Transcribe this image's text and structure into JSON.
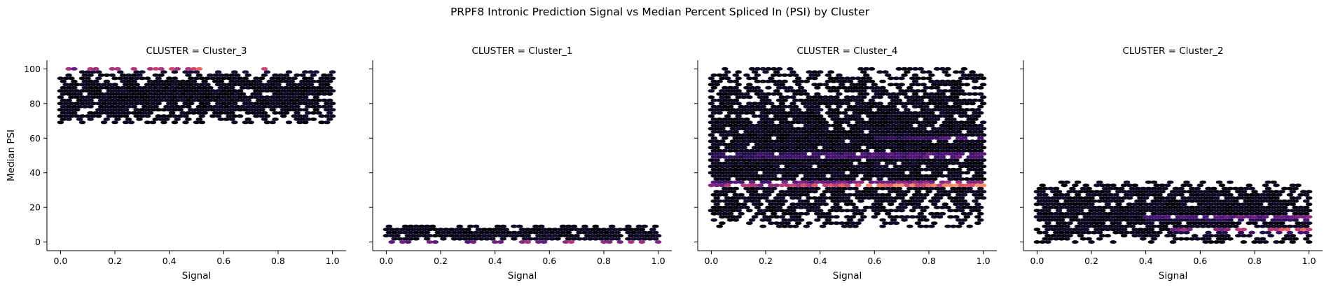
{
  "figure": {
    "title": "PRPF8 Intronic Prediction Signal vs Median Percent Spliced In (PSI) by Cluster"
  },
  "chart_data": {
    "type": "hexbin",
    "colormap": "magma",
    "sharey": true,
    "xlabel": "Signal",
    "ylabel": "Median PSI",
    "xlim": [
      -0.05,
      1.05
    ],
    "ylim": [
      -5,
      105
    ],
    "xticks": [
      "0.0",
      "0.2",
      "0.4",
      "0.6",
      "0.8",
      "1.0"
    ],
    "yticks": [
      "0",
      "20",
      "40",
      "60",
      "80",
      "100"
    ],
    "panels": [
      {
        "title": "CLUSTER = Cluster_3",
        "signal_range": [
          0.0,
          1.0
        ],
        "psi_range": [
          68,
          100
        ],
        "density_bands": [
          {
            "psi": 100,
            "signal_range": [
              0.0,
              1.0
            ],
            "intensity": "high"
          }
        ]
      },
      {
        "title": "CLUSTER = Cluster_1",
        "signal_range": [
          0.0,
          1.0
        ],
        "psi_range": [
          0,
          10
        ],
        "density_bands": [
          {
            "psi": 0,
            "signal_range": [
              0.0,
              1.0
            ],
            "intensity": "medium"
          }
        ]
      },
      {
        "title": "CLUSTER = Cluster_4",
        "signal_range": [
          0.0,
          1.0
        ],
        "psi_range": [
          9,
          100
        ],
        "density_bands": [
          {
            "psi": 33.3,
            "signal_range": [
              0.0,
              1.0
            ],
            "intensity": "max"
          },
          {
            "psi": 50,
            "signal_range": [
              0.0,
              1.0
            ],
            "intensity": "medium"
          },
          {
            "psi": 60,
            "signal_range": [
              0.6,
              1.0
            ],
            "intensity": "low"
          }
        ]
      },
      {
        "title": "CLUSTER = Cluster_2",
        "signal_range": [
          0.0,
          1.0
        ],
        "psi_range": [
          0,
          35
        ],
        "density_bands": [
          {
            "psi": 7,
            "signal_range": [
              0.5,
              1.0
            ],
            "intensity": "high"
          },
          {
            "psi": 14,
            "signal_range": [
              0.4,
              1.0
            ],
            "intensity": "medium"
          }
        ]
      }
    ]
  }
}
